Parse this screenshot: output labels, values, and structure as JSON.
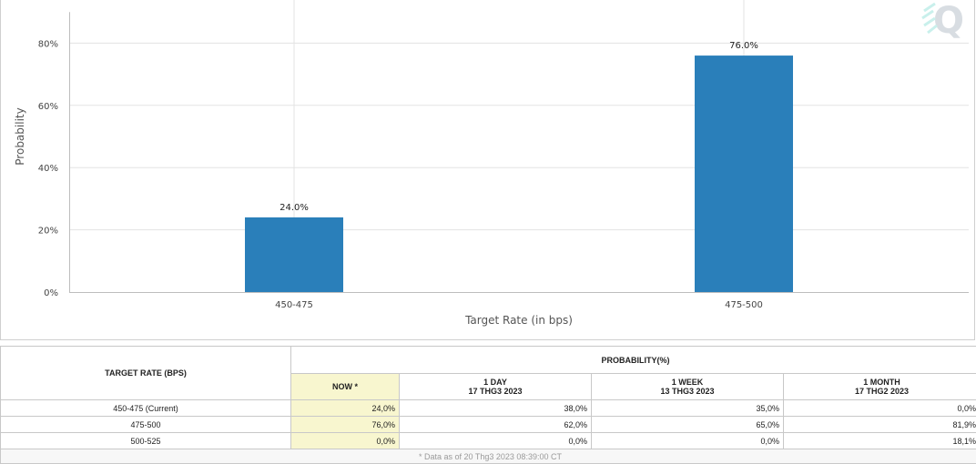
{
  "chart_data": {
    "type": "bar",
    "categories": [
      "450-475",
      "475-500"
    ],
    "values": [
      24.0,
      76.0
    ],
    "data_labels": [
      "24.0%",
      "76.0%"
    ],
    "xlabel": "Target Rate (in bps)",
    "ylabel": "Probability",
    "ylim": [
      0,
      90
    ],
    "yticks": [
      0,
      20,
      40,
      60,
      80
    ],
    "ytick_labels": [
      "0%",
      "20%",
      "40%",
      "60%",
      "80%"
    ],
    "grid": true,
    "bar_color": "#2a7fba"
  },
  "table": {
    "target_header": "TARGET RATE (BPS)",
    "probability_header": "PROBABILITY(%)",
    "columns": [
      {
        "label": "NOW *",
        "date": ""
      },
      {
        "label": "1 DAY",
        "date": "17 THG3 2023"
      },
      {
        "label": "1 WEEK",
        "date": "13 THG3 2023"
      },
      {
        "label": "1 MONTH",
        "date": "17 THG2 2023"
      }
    ],
    "rows": [
      {
        "rate": "450-475 (Current)",
        "values": [
          "24,0%",
          "38,0%",
          "35,0%",
          "0,0%"
        ]
      },
      {
        "rate": "475-500",
        "values": [
          "76,0%",
          "62,0%",
          "65,0%",
          "81,9%"
        ]
      },
      {
        "rate": "500-525",
        "values": [
          "0,0%",
          "0,0%",
          "0,0%",
          "18,1%"
        ]
      }
    ],
    "footnote": "* Data as of 20 Thg3 2023 08:39:00 CT"
  },
  "colors": {
    "now_highlight": "#f8f6cf",
    "grid": "#e3e3e3"
  }
}
